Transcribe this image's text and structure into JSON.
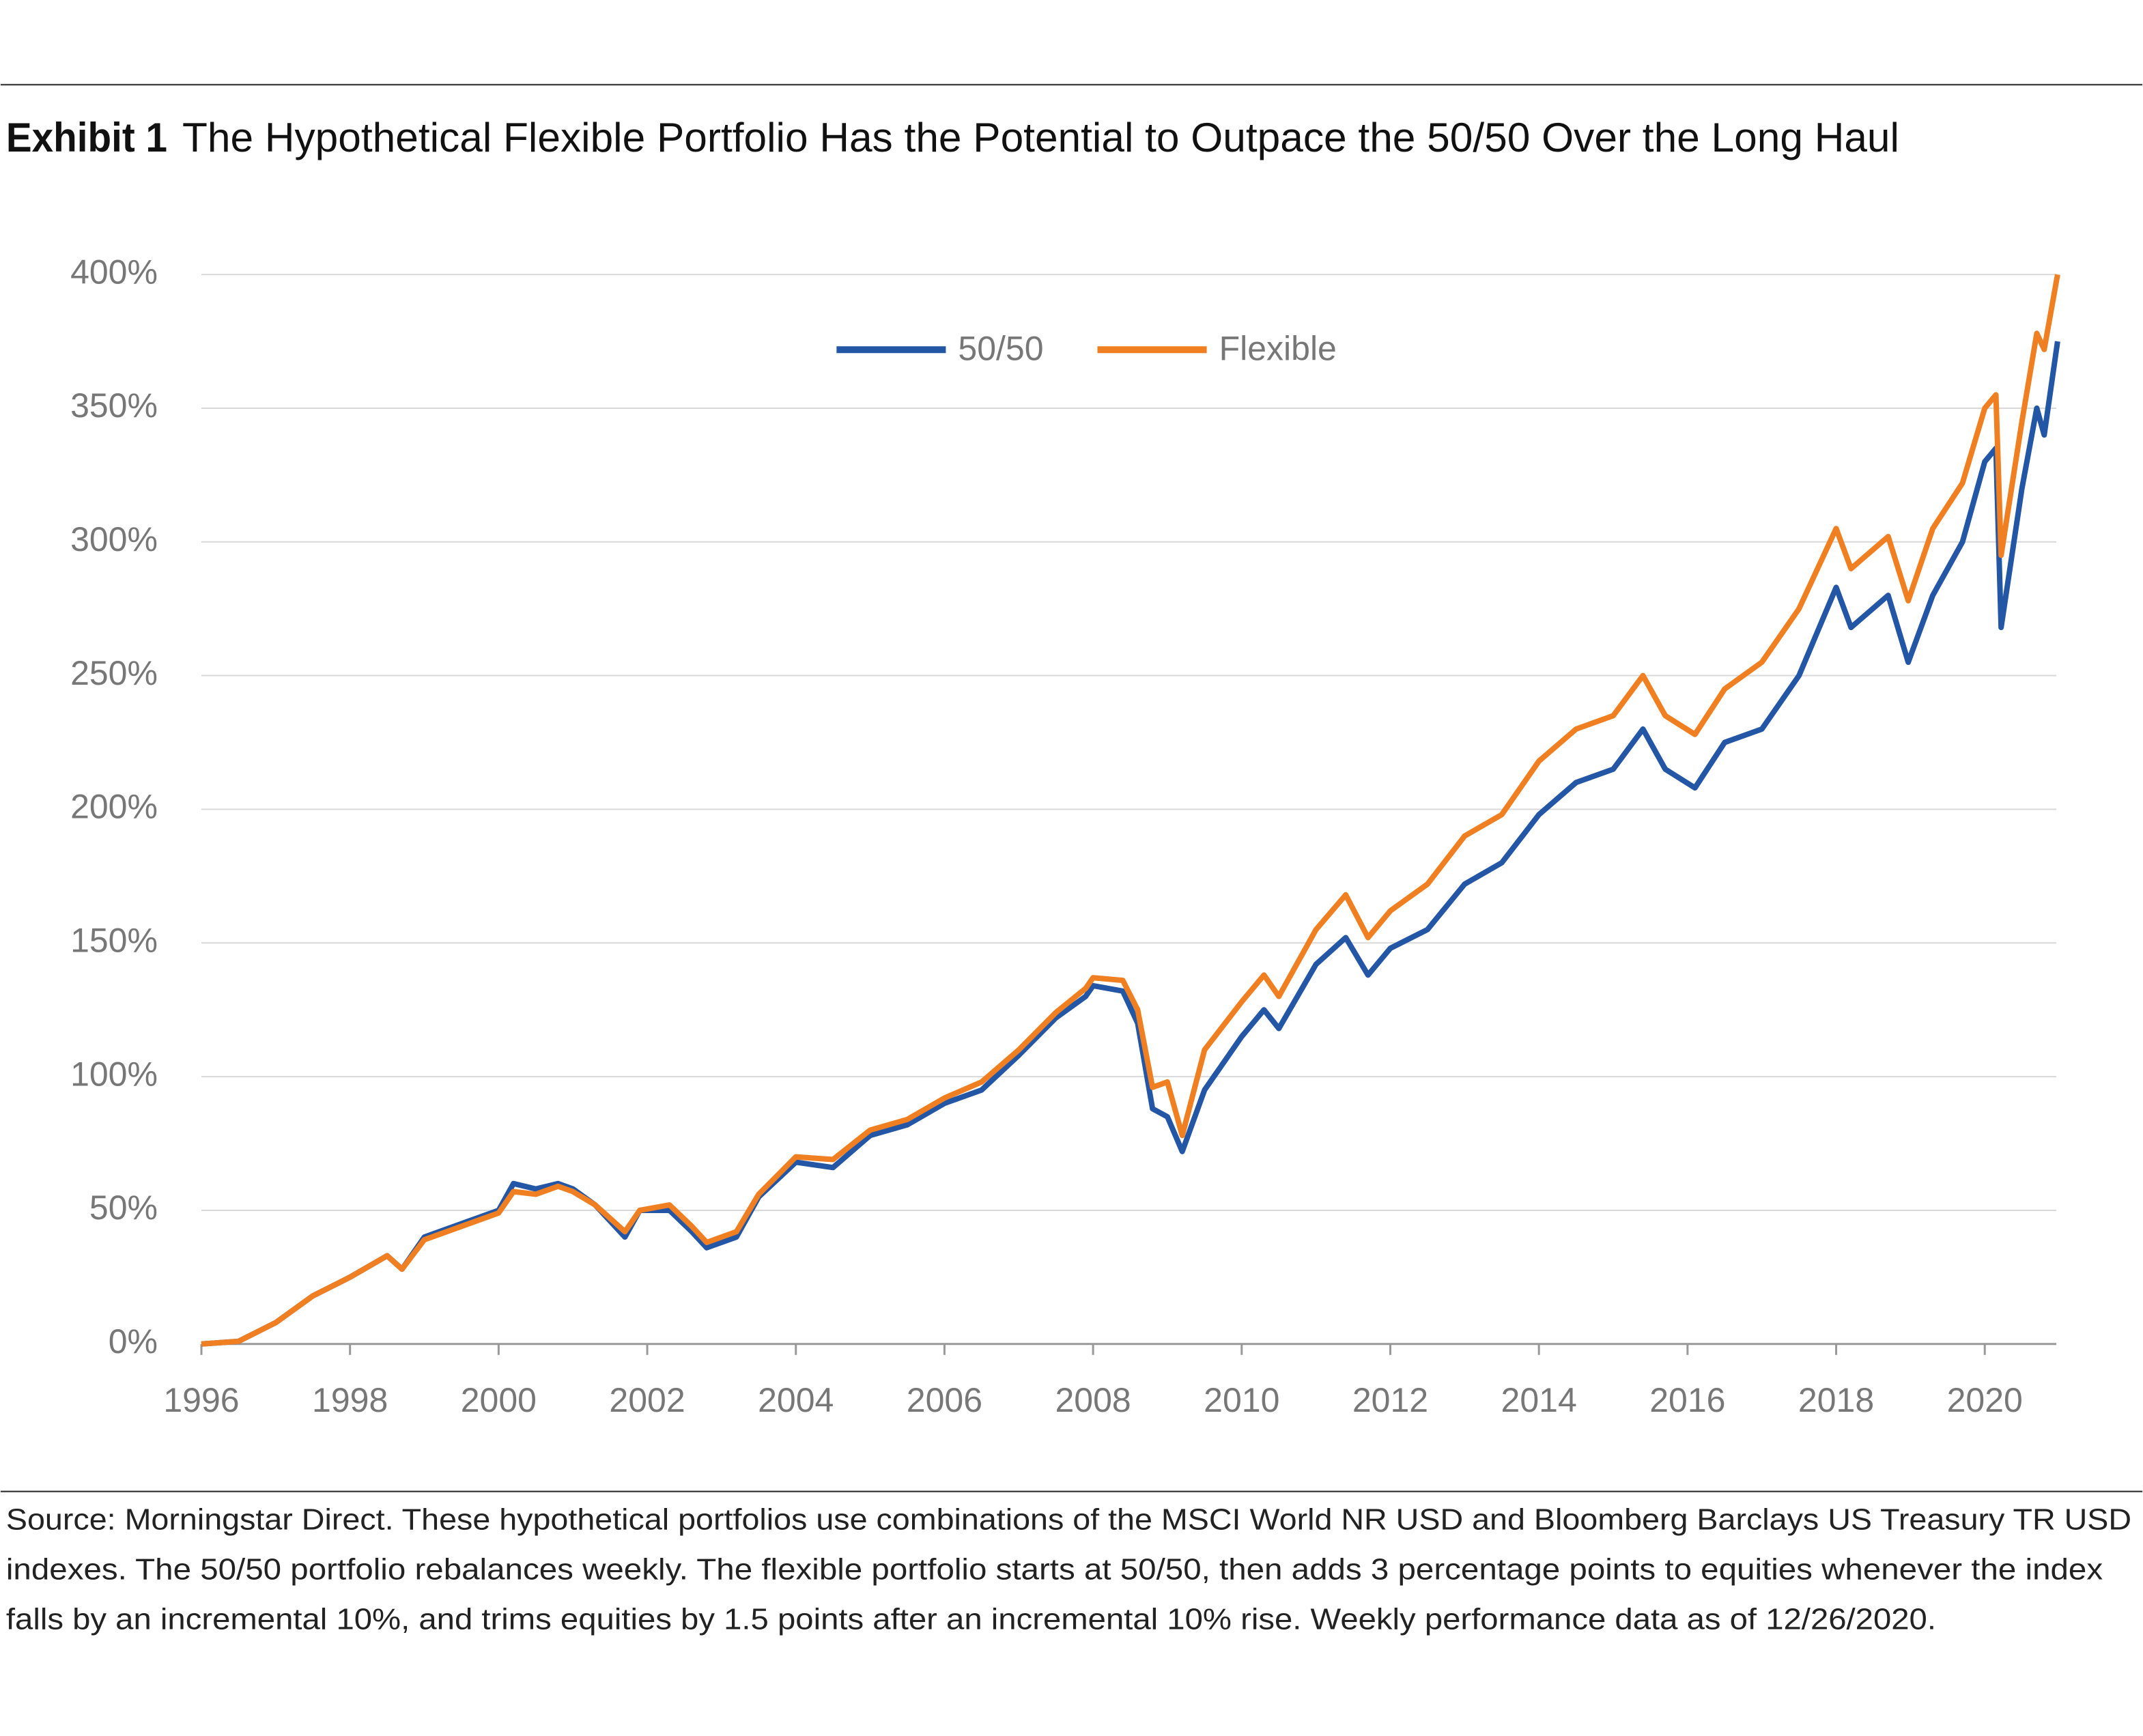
{
  "chart_data": {
    "type": "line",
    "title_label": "Exhibit 1",
    "title": "The Hypothetical Flexible Portfolio Has the Potential to Outpace the 50/50 Over the Long Haul",
    "footnote": [
      "Source: Morningstar Direct. These hypothetical portfolios use combinations of the MSCI World NR USD and Bloomberg Barclays US Treasury TR USD",
      "indexes. The 50/50 portfolio rebalances weekly. The flexible portfolio starts at 50/50, then adds 3 percentage points to equities whenever the index",
      "falls by an incremental 10%, and trims equities by 1.5 points after an incremental 10% rise. Weekly performance data as of 12/26/2020."
    ],
    "x": [
      1996.0,
      1996.5,
      1997.0,
      1997.5,
      1998.0,
      1998.5,
      1998.7,
      1999.0,
      1999.5,
      2000.0,
      2000.2,
      2000.5,
      2000.8,
      2001.0,
      2001.3,
      2001.7,
      2001.9,
      2002.3,
      2002.6,
      2002.8,
      2003.2,
      2003.5,
      2004.0,
      2004.5,
      2005.0,
      2005.5,
      2006.0,
      2006.5,
      2007.0,
      2007.5,
      2007.9,
      2008.0,
      2008.4,
      2008.6,
      2008.8,
      2009.0,
      2009.2,
      2009.5,
      2010.0,
      2010.3,
      2010.5,
      2011.0,
      2011.4,
      2011.7,
      2012.0,
      2012.5,
      2013.0,
      2013.5,
      2014.0,
      2014.5,
      2015.0,
      2015.4,
      2015.7,
      2016.1,
      2016.5,
      2017.0,
      2017.5,
      2018.0,
      2018.2,
      2018.7,
      2018.97,
      2019.3,
      2019.7,
      2020.0,
      2020.15,
      2020.22,
      2020.5,
      2020.7,
      2020.8,
      2020.98
    ],
    "series": [
      {
        "name": "50/50",
        "color": "#2356a5",
        "values": [
          0,
          1,
          8,
          18,
          25,
          33,
          28,
          40,
          45,
          50,
          60,
          58,
          60,
          58,
          52,
          40,
          50,
          50,
          42,
          36,
          40,
          55,
          68,
          66,
          78,
          82,
          90,
          95,
          108,
          122,
          130,
          134,
          132,
          120,
          88,
          85,
          72,
          95,
          115,
          125,
          118,
          142,
          152,
          138,
          148,
          155,
          172,
          180,
          198,
          210,
          215,
          230,
          215,
          208,
          225,
          230,
          250,
          283,
          268,
          280,
          255,
          280,
          300,
          330,
          335,
          268,
          320,
          350,
          340,
          375
        ]
      },
      {
        "name": "Flexible",
        "color": "#f07f22",
        "values": [
          0,
          1,
          8,
          18,
          25,
          33,
          28,
          39,
          44,
          49,
          57,
          56,
          59,
          57,
          52,
          42,
          50,
          52,
          44,
          38,
          42,
          56,
          70,
          69,
          80,
          84,
          92,
          98,
          110,
          124,
          133,
          137,
          136,
          125,
          96,
          98,
          78,
          110,
          128,
          138,
          130,
          155,
          168,
          152,
          162,
          172,
          190,
          198,
          218,
          230,
          235,
          250,
          235,
          228,
          245,
          255,
          275,
          305,
          290,
          302,
          278,
          305,
          322,
          350,
          355,
          295,
          345,
          378,
          372,
          400
        ]
      }
    ],
    "xlim": [
      1996,
      2021
    ],
    "xticks": [
      1996,
      1998,
      2000,
      2002,
      2004,
      2006,
      2008,
      2010,
      2012,
      2014,
      2016,
      2018,
      2020
    ],
    "ylim": [
      0,
      400
    ],
    "yticks": [
      {
        "value": 0,
        "label": "0%"
      },
      {
        "value": 50,
        "label": "50%"
      },
      {
        "value": 100,
        "label": "100%"
      },
      {
        "value": 150,
        "label": "150%"
      },
      {
        "value": 200,
        "label": "200%"
      },
      {
        "value": 250,
        "label": "250%"
      },
      {
        "value": 300,
        "label": "300%"
      },
      {
        "value": 350,
        "label": "350%"
      },
      {
        "value": 400,
        "label": "400%"
      }
    ],
    "grid": true,
    "legend": "top"
  }
}
